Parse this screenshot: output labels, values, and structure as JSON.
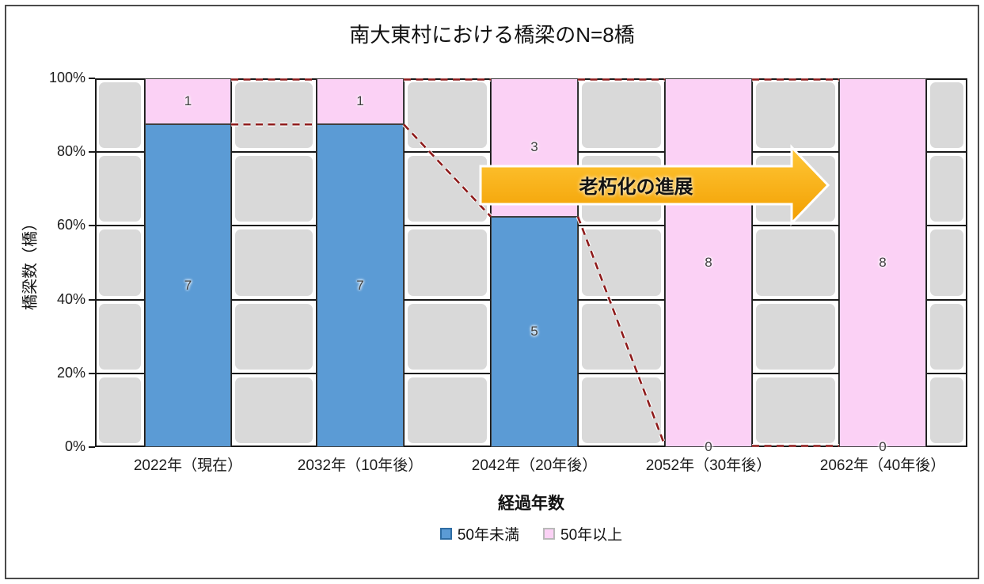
{
  "chart_data": {
    "type": "bar",
    "stacked": true,
    "title": "南大東村における橋梁のN=8橋",
    "xlabel": "経過年数",
    "ylabel": "橋梁数（橋）",
    "categories": [
      "2022年（現在）",
      "2032年（10年後）",
      "2042年（20年後）",
      "2052年（30年後）",
      "2062年（40年後）"
    ],
    "series": [
      {
        "name": "50年未満",
        "values": [
          7,
          7,
          5,
          0,
          0
        ],
        "color": "#5B9BD5",
        "border": "#2E6DA4"
      },
      {
        "name": "50年以上",
        "values": [
          1,
          1,
          3,
          8,
          8
        ],
        "color": "#FBD1F5",
        "border": "#B9B9B9"
      }
    ],
    "total": 8,
    "y_ticks": [
      "0%",
      "20%",
      "40%",
      "60%",
      "80%",
      "100%"
    ],
    "ylim": [
      0,
      100
    ],
    "grid": true,
    "legend_position": "bottom",
    "annotation_arrow": "老朽化の進展"
  },
  "colors": {
    "blue": "#5B9BD5",
    "pink": "#FBD1F5",
    "tile": "#D9D9D9",
    "grid": "#1a1a1a",
    "dash": "#8E1B1B",
    "label": "#404040",
    "arrow_top": "#FFC838",
    "arrow_bottom": "#F29E00"
  }
}
